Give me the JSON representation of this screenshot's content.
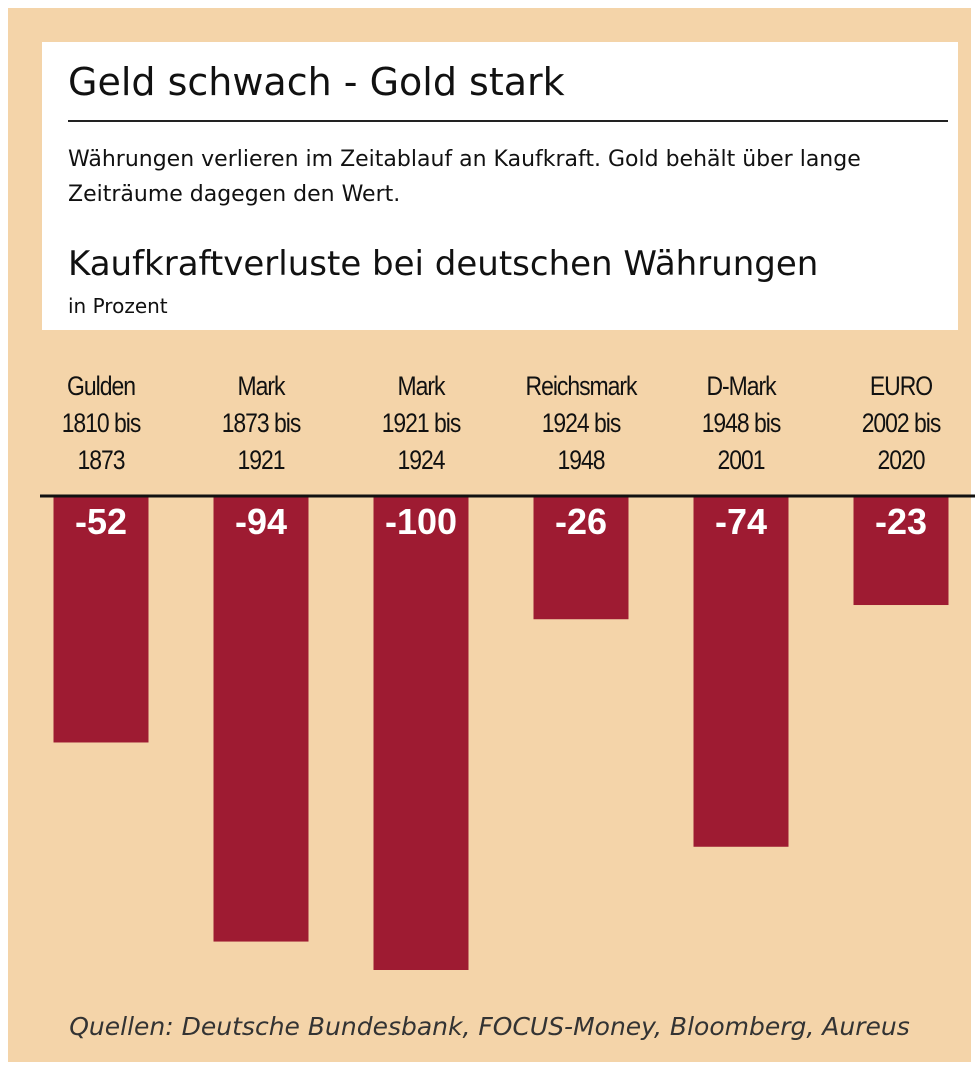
{
  "chart_data": {
    "type": "bar",
    "title": "Geld schwach - Gold stark",
    "subtitle": "Währungen verlieren im Zeitablauf an Kaufkraft. Gold behält über lange Zeiträume dagegen den Wert.",
    "chart_title": "Kaufkraftverluste bei deutschen Währungen",
    "y_label": "in Prozent",
    "categories": [
      "Gulden\n1810 bis\n1873",
      "Mark\n1873 bis\n1921",
      "Mark\n1921 bis\n1924",
      "Reichsmark\n1924 bis\n1948",
      "D-Mark\n1948 bis\n2001",
      "EURO\n2002 bis\n2020"
    ],
    "values": [
      -52,
      -94,
      -100,
      -26,
      -74,
      -23
    ],
    "color": "#9e1b32",
    "ylim": [
      -100,
      0
    ],
    "source": "Quellen: Deutsche Bundesbank, FOCUS-Money, Bloomberg, Aureus"
  }
}
